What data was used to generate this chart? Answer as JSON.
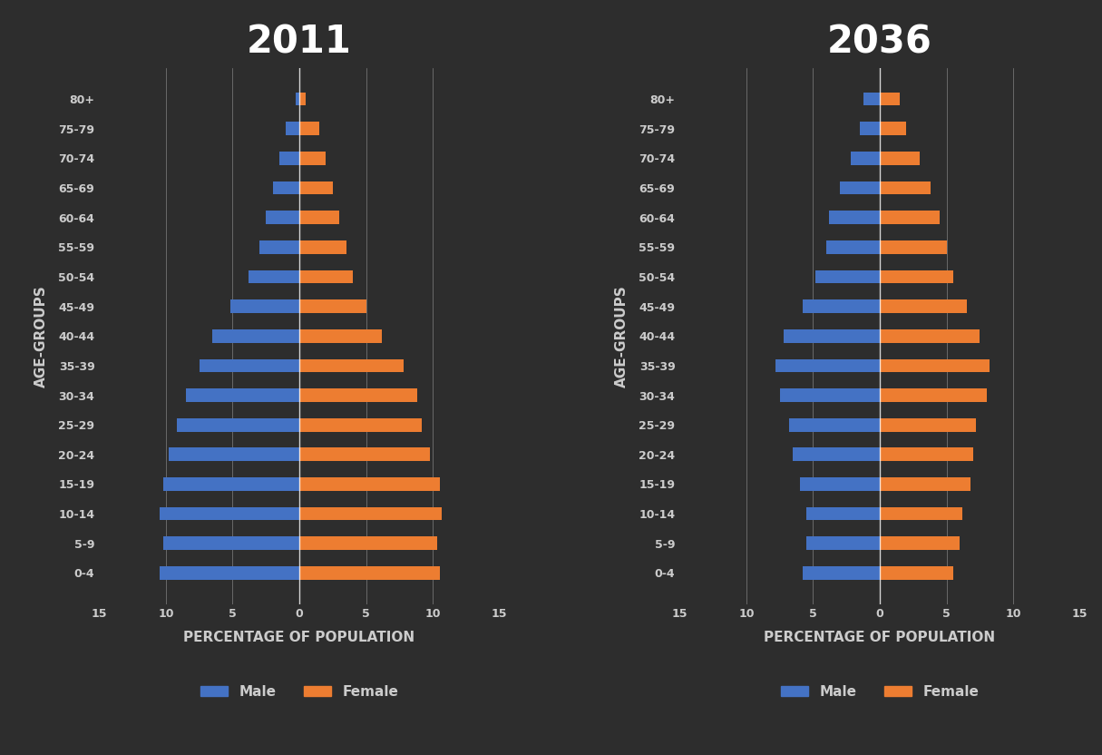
{
  "age_groups": [
    "0-4",
    "5-9",
    "10-14",
    "15-19",
    "20-24",
    "25-29",
    "30-34",
    "35-39",
    "40-44",
    "45-49",
    "50-54",
    "55-59",
    "60-64",
    "65-69",
    "70-74",
    "75-79",
    "80+"
  ],
  "year2011": {
    "male": [
      10.5,
      10.2,
      10.5,
      10.2,
      9.8,
      9.2,
      8.5,
      7.5,
      6.5,
      5.2,
      3.8,
      3.0,
      2.5,
      2.0,
      1.5,
      1.0,
      0.3
    ],
    "female": [
      10.5,
      10.3,
      10.7,
      10.5,
      9.8,
      9.2,
      8.8,
      7.8,
      6.2,
      5.0,
      4.0,
      3.5,
      3.0,
      2.5,
      2.0,
      1.5,
      0.5
    ]
  },
  "year2036": {
    "male": [
      5.8,
      5.5,
      5.5,
      6.0,
      6.5,
      6.8,
      7.5,
      7.8,
      7.2,
      5.8,
      4.8,
      4.0,
      3.8,
      3.0,
      2.2,
      1.5,
      1.2
    ],
    "female": [
      5.5,
      6.0,
      6.2,
      6.8,
      7.0,
      7.2,
      8.0,
      8.2,
      7.5,
      6.5,
      5.5,
      5.0,
      4.5,
      3.8,
      3.0,
      2.0,
      1.5
    ]
  },
  "male_color": "#4472C4",
  "female_color": "#ED7D31",
  "bg_color": "#2d2d2d",
  "text_color": "#cccccc",
  "title_color": "#ffffff",
  "grid_color": "#aaaaaa",
  "xlim": 15,
  "xlabel": "PERCENTAGE OF POPULATION",
  "ylabel": "AGE-GROUPS",
  "title_2011": "2011",
  "title_2036": "2036"
}
